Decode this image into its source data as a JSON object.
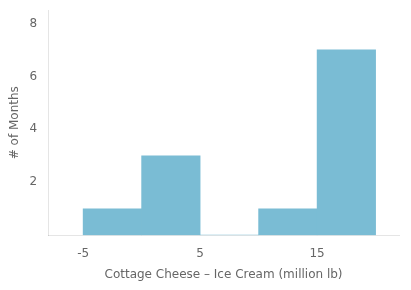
{
  "chart_data": {
    "type": "histogram",
    "bins": [
      -5,
      0,
      5,
      10,
      15,
      20
    ],
    "values": [
      1,
      3,
      0,
      1,
      7
    ],
    "color": "#7abcd4",
    "xlabel": "Cottage Cheese – Ice Cream (million lb)",
    "ylabel": "# of Months",
    "xlim": [
      -8,
      22
    ],
    "ylim": [
      0,
      8.5
    ],
    "xticks": [
      -5,
      5,
      15
    ],
    "yticks": [
      2,
      4,
      6,
      8
    ],
    "grid": false
  }
}
